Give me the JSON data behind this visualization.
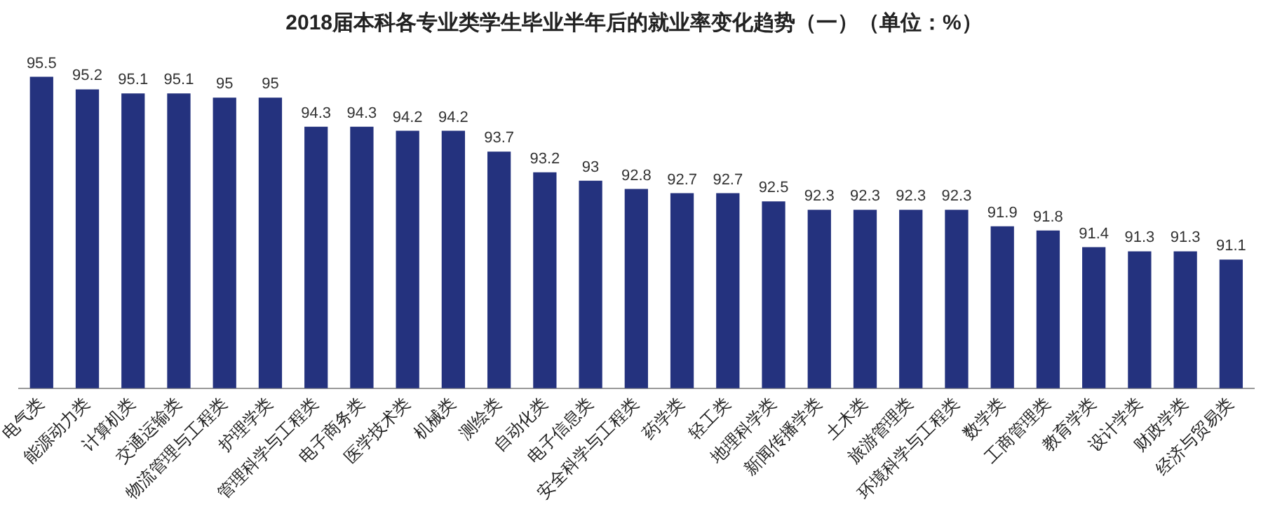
{
  "chart_data": {
    "type": "bar",
    "title": "2018届本科各专业类学生毕业半年后的就业率变化趋势（一）（单位：%）",
    "categories": [
      "电气类",
      "能源动力类",
      "计算机类",
      "交通运输类",
      "物流管理与工程类",
      "护理学类",
      "管理科学与工程类",
      "电子商务类",
      "医学技术类",
      "机械类",
      "测绘类",
      "自动化类",
      "电子信息类",
      "安全科学与工程类",
      "药学类",
      "轻工类",
      "地理科学类",
      "新闻传播学类",
      "土木类",
      "旅游管理类",
      "环境科学与工程类",
      "数学类",
      "工商管理类",
      "教育学类",
      "设计学类",
      "财政学类",
      "经济与贸易类"
    ],
    "values": [
      95.5,
      95.2,
      95.1,
      95.1,
      95,
      95,
      94.3,
      94.3,
      94.2,
      94.2,
      93.7,
      93.2,
      93,
      92.8,
      92.7,
      92.7,
      92.5,
      92.3,
      92.3,
      92.3,
      92.3,
      91.9,
      91.8,
      91.4,
      91.3,
      91.3,
      91.1
    ],
    "color": "#24327e",
    "data_labels": true,
    "grid": false,
    "legend": false
  }
}
